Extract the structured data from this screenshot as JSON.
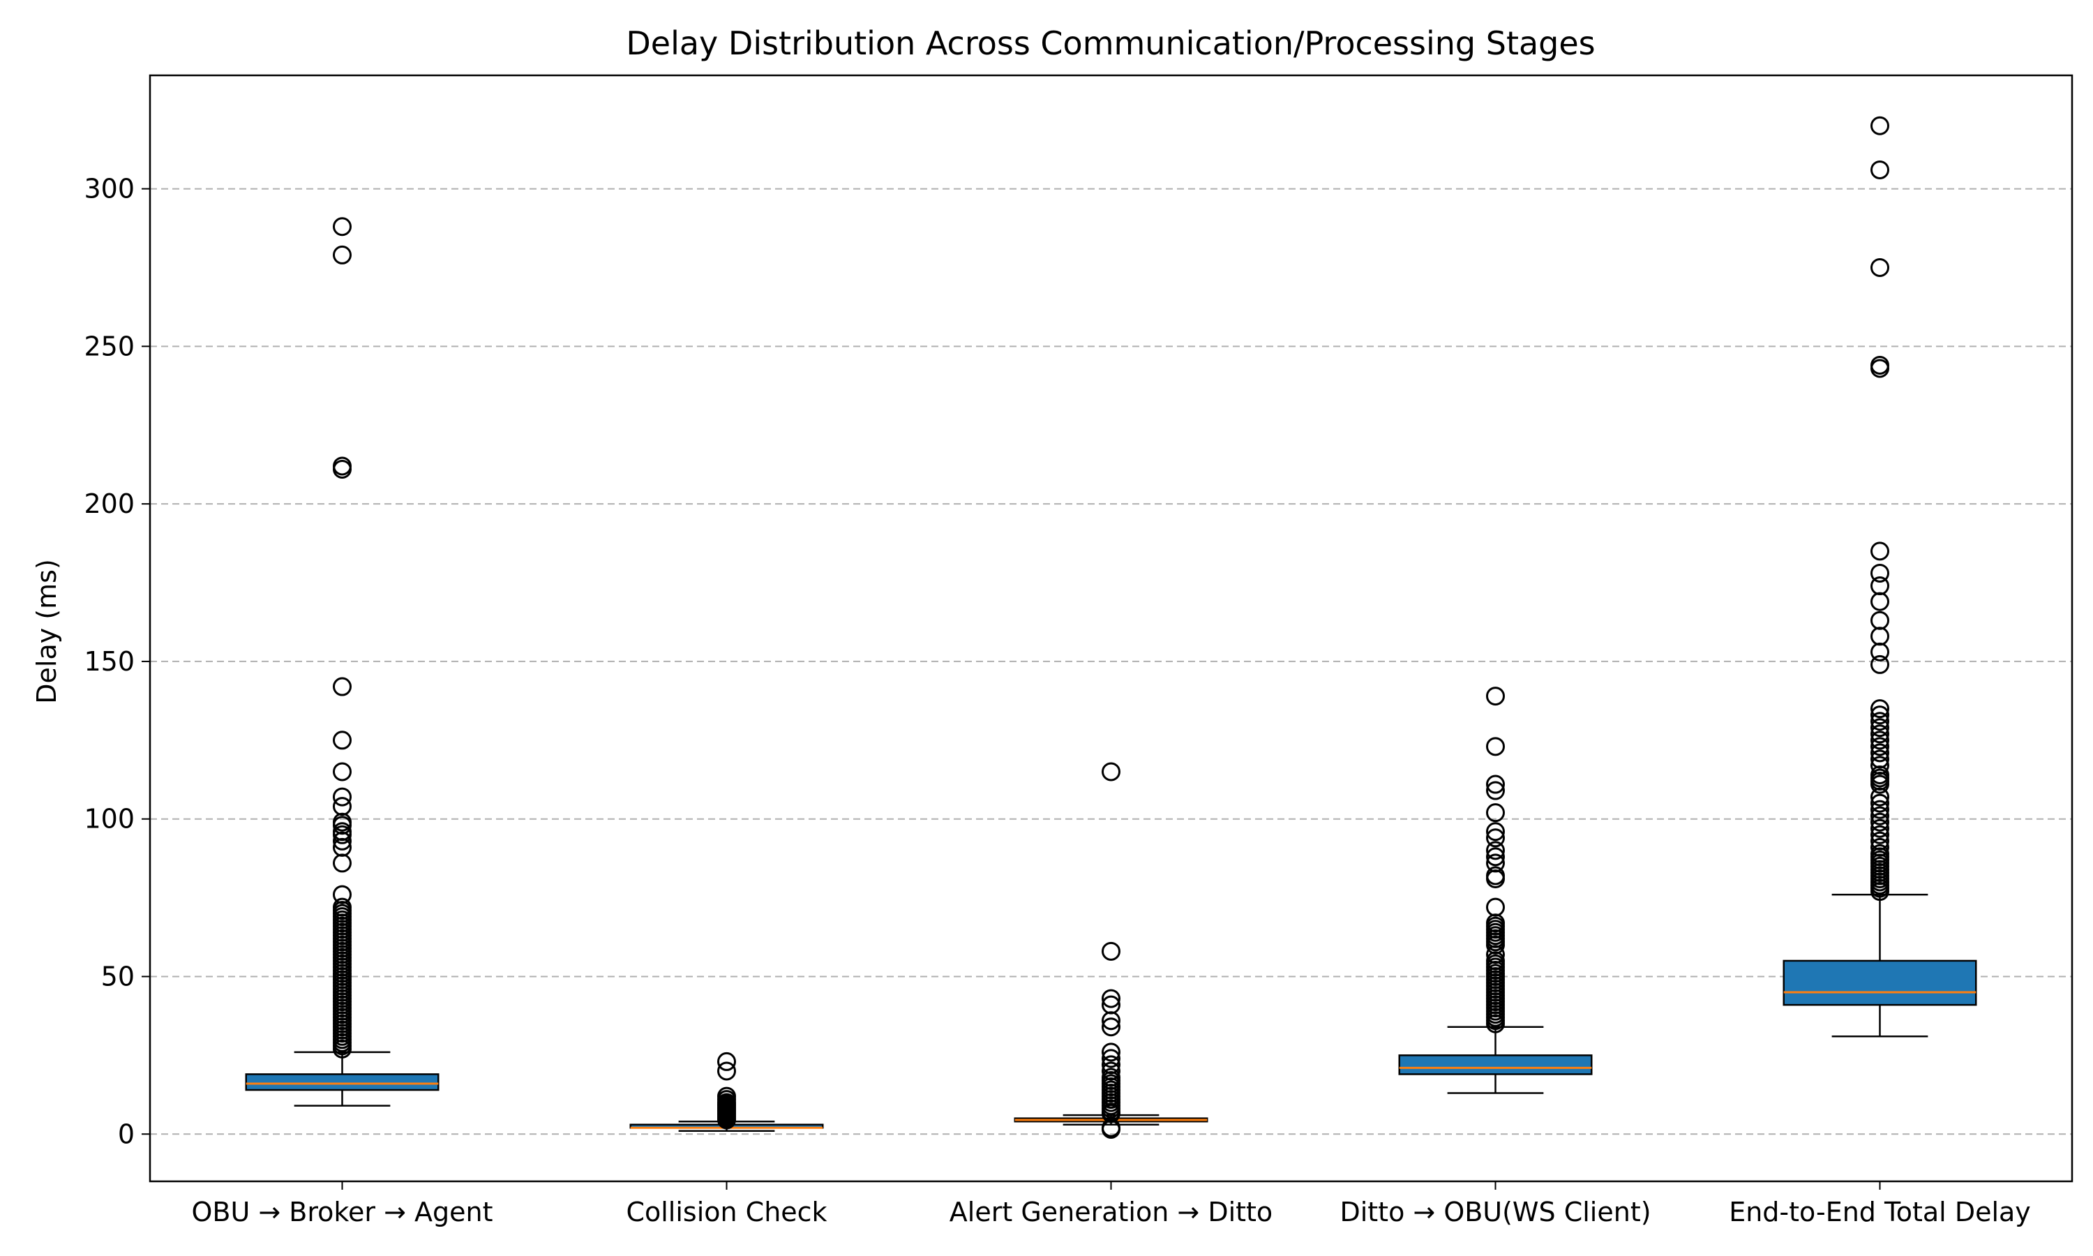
{
  "chart_data": {
    "type": "box",
    "title": "Delay Distribution Across Communication/Processing Stages",
    "xlabel": "",
    "ylabel": "Delay (ms)",
    "ylim": [
      -15,
      336
    ],
    "yticks": [
      0,
      50,
      100,
      150,
      200,
      250,
      300
    ],
    "grid": "horizontal dashed",
    "box_color": "#1f77b4",
    "median_color": "#ff7f0e",
    "categories": [
      "OBU → Broker → Agent",
      "Collision Check",
      "Alert Generation → Ditto",
      "Ditto → OBU(WS Client)",
      "End-to-End Total Delay"
    ],
    "series": [
      {
        "whisker_low": 9,
        "q1": 14,
        "median": 16,
        "q3": 19,
        "whisker_high": 26,
        "outliers": [
          288,
          279,
          212,
          211,
          142,
          125,
          115,
          107,
          104,
          99,
          98,
          96,
          95,
          93,
          91,
          86,
          76,
          72,
          71,
          70,
          69,
          68,
          67,
          66,
          65,
          64,
          63,
          62,
          61,
          60,
          59,
          58,
          57,
          56,
          55,
          54,
          53,
          52,
          51,
          50,
          49,
          48,
          47,
          46,
          45,
          44,
          43,
          42,
          41,
          40,
          39,
          38,
          37,
          36,
          35,
          34,
          33,
          32,
          31,
          30,
          29,
          28,
          27
        ]
      },
      {
        "whisker_low": 1,
        "q1": 2,
        "median": 2,
        "q3": 3,
        "whisker_high": 4,
        "outliers": [
          23,
          20,
          12,
          11,
          10,
          9.5,
          9,
          8.5,
          8,
          7.5,
          7,
          6.5,
          6,
          5.5,
          5,
          4.5
        ]
      },
      {
        "whisker_low": 3,
        "q1": 4,
        "median": 4.5,
        "q3": 5,
        "whisker_high": 6,
        "outliers": [
          115,
          58,
          43,
          41,
          36,
          34,
          26,
          24,
          22,
          20,
          18,
          17,
          16,
          15,
          14,
          13,
          12,
          11,
          10,
          9,
          8,
          7,
          6.5,
          2,
          1.5
        ]
      },
      {
        "whisker_low": 13,
        "q1": 19,
        "median": 21,
        "q3": 25,
        "whisker_high": 34,
        "outliers": [
          139,
          123,
          111,
          109,
          102,
          96,
          94,
          90,
          88,
          86,
          82,
          81,
          72,
          67,
          66,
          65,
          64,
          63,
          62,
          61,
          60,
          57,
          55,
          54,
          53,
          52,
          51,
          50,
          49,
          48,
          47,
          46,
          45,
          44,
          43,
          42,
          41,
          40,
          39,
          38,
          37,
          36,
          35
        ]
      },
      {
        "whisker_low": 31,
        "q1": 41,
        "median": 45,
        "q3": 55,
        "whisker_high": 76,
        "outliers": [
          320,
          306,
          275,
          244,
          243,
          185,
          178,
          174,
          169,
          163,
          158,
          153,
          149,
          135,
          133,
          131,
          129,
          127,
          125,
          123,
          121,
          119,
          117,
          114,
          113,
          112,
          111,
          107,
          105,
          103,
          101,
          99,
          97,
          95,
          93,
          91,
          89,
          88,
          87,
          86,
          85,
          84,
          83,
          82,
          81,
          80,
          79,
          78,
          77
        ]
      }
    ]
  }
}
